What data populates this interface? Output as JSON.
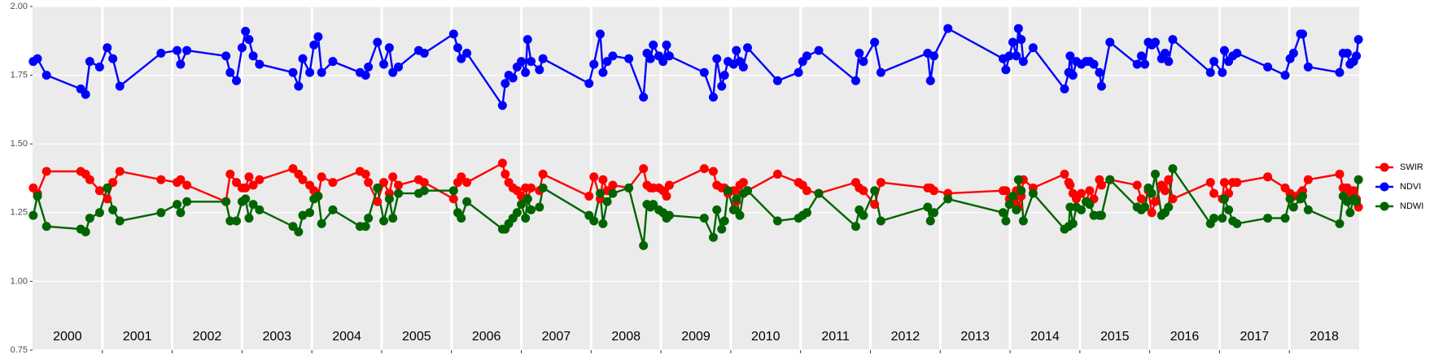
{
  "chart_data": {
    "type": "line",
    "years": [
      2000,
      2001,
      2002,
      2003,
      2004,
      2005,
      2006,
      2007,
      2008,
      2009,
      2010,
      2011,
      2012,
      2013,
      2014,
      2015,
      2016,
      2017,
      2018
    ],
    "x": [
      2000.01,
      2000.07,
      2000.2,
      2000.69,
      2000.76,
      2000.82,
      2000.96,
      2001.07,
      2001.15,
      2001.25,
      2001.84,
      2002.07,
      2002.12,
      2002.21,
      2002.77,
      2002.83,
      2002.92,
      2003.0,
      2003.05,
      2003.1,
      2003.16,
      2003.25,
      2003.73,
      2003.81,
      2003.87,
      2003.97,
      2004.03,
      2004.09,
      2004.14,
      2004.3,
      2004.69,
      2004.77,
      2004.81,
      2004.94,
      2005.03,
      2005.11,
      2005.16,
      2005.24,
      2005.53,
      2005.61,
      2006.03,
      2006.09,
      2006.14,
      2006.22,
      2006.73,
      2006.77,
      2006.82,
      2006.88,
      2006.94,
      2007.0,
      2007.06,
      2007.09,
      2007.14,
      2007.26,
      2007.31,
      2007.97,
      2008.04,
      2008.13,
      2008.17,
      2008.23,
      2008.31,
      2008.54,
      2008.75,
      2008.8,
      2008.85,
      2008.89,
      2008.97,
      2009.03,
      2009.08,
      2009.12,
      2009.62,
      2009.75,
      2009.8,
      2009.87,
      2009.91,
      2009.96,
      2010.04,
      2010.08,
      2010.13,
      2010.18,
      2010.24,
      2010.67,
      2010.97,
      2011.03,
      2011.09,
      2011.26,
      2011.79,
      2011.84,
      2011.9,
      2012.06,
      2012.15,
      2012.82,
      2012.86,
      2012.91,
      2013.11,
      2013.9,
      2013.94,
      2013.99,
      2014.04,
      2014.09,
      2014.12,
      2014.16,
      2014.19,
      2014.33,
      2014.78,
      2014.84,
      2014.86,
      2014.9,
      2014.95,
      2015.02,
      2015.09,
      2015.14,
      2015.2,
      2015.28,
      2015.31,
      2015.43,
      2015.82,
      2015.88,
      2015.93,
      2015.98,
      2016.03,
      2016.08,
      2016.17,
      2016.22,
      2016.27,
      2016.33,
      2016.87,
      2016.92,
      2017.04,
      2017.07,
      2017.13,
      2017.19,
      2017.25,
      2017.69,
      2017.94,
      2018.01,
      2018.06,
      2018.16,
      2018.19,
      2018.27,
      2018.72,
      2018.77,
      2018.83,
      2018.87,
      2018.92,
      2018.96,
      2018.99
    ],
    "series": [
      {
        "name": "SWIR",
        "color": "#ff0000",
        "values": [
          1.34,
          1.32,
          1.4,
          1.4,
          1.39,
          1.37,
          1.33,
          1.3,
          1.36,
          1.4,
          1.37,
          1.36,
          1.37,
          1.35,
          1.29,
          1.39,
          1.36,
          1.34,
          1.34,
          1.38,
          1.35,
          1.37,
          1.41,
          1.39,
          1.37,
          1.35,
          1.33,
          1.31,
          1.38,
          1.36,
          1.4,
          1.39,
          1.36,
          1.29,
          1.36,
          1.32,
          1.38,
          1.35,
          1.37,
          1.36,
          1.3,
          1.36,
          1.38,
          1.36,
          1.43,
          1.39,
          1.36,
          1.34,
          1.33,
          1.31,
          1.34,
          1.3,
          1.34,
          1.33,
          1.39,
          1.31,
          1.38,
          1.3,
          1.37,
          1.33,
          1.35,
          1.34,
          1.41,
          1.35,
          1.34,
          1.34,
          1.34,
          1.33,
          1.31,
          1.35,
          1.41,
          1.4,
          1.35,
          1.34,
          1.34,
          1.32,
          1.33,
          1.29,
          1.35,
          1.36,
          1.33,
          1.39,
          1.36,
          1.35,
          1.33,
          1.32,
          1.36,
          1.34,
          1.33,
          1.28,
          1.36,
          1.34,
          1.34,
          1.33,
          1.32,
          1.33,
          1.33,
          1.3,
          1.29,
          1.33,
          1.27,
          1.31,
          1.37,
          1.34,
          1.39,
          1.36,
          1.35,
          1.32,
          1.3,
          1.32,
          1.29,
          1.33,
          1.3,
          1.37,
          1.35,
          1.37,
          1.35,
          1.3,
          1.27,
          1.33,
          1.25,
          1.29,
          1.35,
          1.33,
          1.37,
          1.3,
          1.36,
          1.32,
          1.3,
          1.36,
          1.32,
          1.36,
          1.36,
          1.38,
          1.34,
          1.32,
          1.31,
          1.32,
          1.33,
          1.37,
          1.39,
          1.34,
          1.34,
          1.32,
          1.33,
          1.3,
          1.27
        ]
      },
      {
        "name": "NDVI",
        "color": "#0000ff",
        "values": [
          1.8,
          1.81,
          1.75,
          1.7,
          1.68,
          1.8,
          1.78,
          1.85,
          1.81,
          1.71,
          1.83,
          1.84,
          1.79,
          1.84,
          1.82,
          1.76,
          1.73,
          1.85,
          1.91,
          1.88,
          1.82,
          1.79,
          1.76,
          1.71,
          1.81,
          1.76,
          1.86,
          1.89,
          1.76,
          1.8,
          1.76,
          1.75,
          1.78,
          1.87,
          1.79,
          1.85,
          1.76,
          1.78,
          1.84,
          1.83,
          1.9,
          1.85,
          1.81,
          1.83,
          1.64,
          1.72,
          1.75,
          1.74,
          1.78,
          1.8,
          1.76,
          1.88,
          1.8,
          1.77,
          1.81,
          1.72,
          1.79,
          1.9,
          1.76,
          1.8,
          1.82,
          1.81,
          1.67,
          1.83,
          1.81,
          1.86,
          1.82,
          1.8,
          1.86,
          1.82,
          1.76,
          1.67,
          1.81,
          1.71,
          1.75,
          1.8,
          1.79,
          1.84,
          1.8,
          1.78,
          1.85,
          1.73,
          1.76,
          1.8,
          1.82,
          1.84,
          1.73,
          1.83,
          1.8,
          1.87,
          1.76,
          1.83,
          1.73,
          1.82,
          1.92,
          1.81,
          1.77,
          1.82,
          1.87,
          1.82,
          1.92,
          1.88,
          1.8,
          1.85,
          1.7,
          1.76,
          1.82,
          1.75,
          1.8,
          1.79,
          1.8,
          1.8,
          1.79,
          1.76,
          1.71,
          1.87,
          1.79,
          1.82,
          1.79,
          1.87,
          1.86,
          1.87,
          1.81,
          1.83,
          1.8,
          1.88,
          1.76,
          1.8,
          1.76,
          1.84,
          1.8,
          1.82,
          1.83,
          1.78,
          1.75,
          1.81,
          1.83,
          1.9,
          1.9,
          1.78,
          1.76,
          1.83,
          1.83,
          1.79,
          1.8,
          1.82,
          1.88
        ]
      },
      {
        "name": "NDWI",
        "color": "#006400",
        "values": [
          1.24,
          1.31,
          1.2,
          1.19,
          1.18,
          1.23,
          1.25,
          1.34,
          1.26,
          1.22,
          1.25,
          1.28,
          1.25,
          1.29,
          1.29,
          1.22,
          1.22,
          1.29,
          1.3,
          1.23,
          1.28,
          1.26,
          1.2,
          1.18,
          1.24,
          1.25,
          1.3,
          1.31,
          1.21,
          1.26,
          1.2,
          1.2,
          1.23,
          1.34,
          1.22,
          1.3,
          1.23,
          1.32,
          1.32,
          1.33,
          1.33,
          1.25,
          1.23,
          1.29,
          1.19,
          1.19,
          1.21,
          1.23,
          1.25,
          1.28,
          1.23,
          1.3,
          1.26,
          1.27,
          1.34,
          1.24,
          1.22,
          1.32,
          1.21,
          1.29,
          1.32,
          1.34,
          1.13,
          1.28,
          1.27,
          1.28,
          1.26,
          1.25,
          1.23,
          1.24,
          1.23,
          1.16,
          1.26,
          1.19,
          1.22,
          1.33,
          1.26,
          1.3,
          1.24,
          1.32,
          1.33,
          1.22,
          1.23,
          1.24,
          1.25,
          1.32,
          1.2,
          1.26,
          1.24,
          1.33,
          1.22,
          1.27,
          1.22,
          1.25,
          1.3,
          1.25,
          1.22,
          1.28,
          1.31,
          1.26,
          1.37,
          1.33,
          1.22,
          1.32,
          1.19,
          1.2,
          1.27,
          1.21,
          1.27,
          1.26,
          1.29,
          1.28,
          1.24,
          1.24,
          1.24,
          1.37,
          1.27,
          1.26,
          1.27,
          1.34,
          1.32,
          1.39,
          1.24,
          1.25,
          1.27,
          1.41,
          1.21,
          1.23,
          1.23,
          1.3,
          1.26,
          1.22,
          1.21,
          1.23,
          1.23,
          1.3,
          1.27,
          1.3,
          1.31,
          1.26,
          1.21,
          1.31,
          1.29,
          1.25,
          1.3,
          1.29,
          1.37
        ]
      }
    ],
    "xlim": [
      2000,
      2019
    ],
    "ylim": [
      0.75,
      2.0
    ],
    "yticks": [
      {
        "value": 0.75,
        "label": "0.75"
      },
      {
        "value": 1.0,
        "label": "1.00"
      },
      {
        "value": 1.25,
        "label": "1.25"
      },
      {
        "value": 1.5,
        "label": "1.50"
      },
      {
        "value": 1.75,
        "label": "1.75"
      },
      {
        "value": 2.0,
        "label": "2.00"
      }
    ],
    "grid": true
  }
}
